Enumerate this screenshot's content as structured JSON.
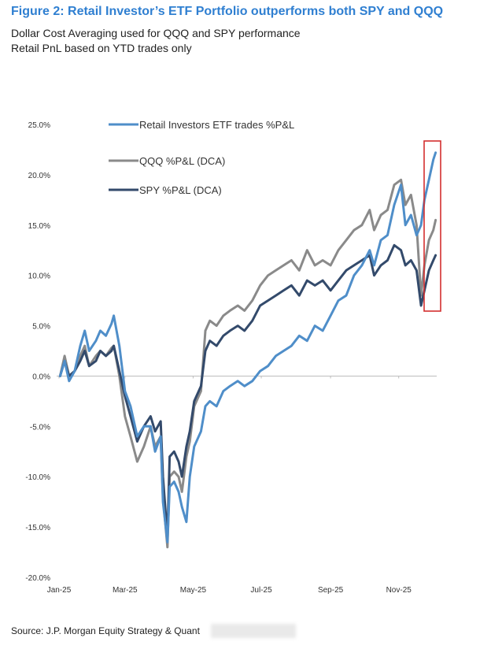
{
  "figure": {
    "title": "Figure 2: Retail Investor’s ETF Portfolio outperforms both SPY and QQQ",
    "subtitle_line1": "Dollar Cost Averaging used for QQQ and SPY performance",
    "subtitle_line2": "Retail PnL based on YTD trades only",
    "source": "Source: J.P. Morgan Equity Strategy & Quant"
  },
  "colors": {
    "retail": "#4f8ec9",
    "qqq": "#8a8a8a",
    "spy": "#334a6b",
    "highlight_box": "#d32f2f"
  },
  "chart_data": {
    "type": "line",
    "x_tick_labels": [
      "Jan-25",
      "Mar-25",
      "May-25",
      "Jul-25",
      "Sep-25",
      "Nov-25"
    ],
    "y_tick_labels": [
      "25.0%",
      "20.0%",
      "15.0%",
      "10.0%",
      "5.0%",
      "0.0%",
      "-5.0%",
      "-10.0%",
      "-15.0%",
      "-20.0%"
    ],
    "ylim": [
      -20,
      25
    ],
    "x_range": [
      "2025-01-01",
      "2025-12-05"
    ],
    "grid": false,
    "legend_position": "top-left",
    "highlight": "red box around late-November to early-December values",
    "series": [
      {
        "name": "Retail Investors ETF trades %P&L",
        "color": "#4f8ec9",
        "points": [
          [
            "2025-01-02",
            0.0
          ],
          [
            "2025-01-06",
            1.5
          ],
          [
            "2025-01-10",
            -0.5
          ],
          [
            "2025-01-15",
            0.5
          ],
          [
            "2025-01-20",
            3.0
          ],
          [
            "2025-01-24",
            4.5
          ],
          [
            "2025-01-28",
            2.5
          ],
          [
            "2025-02-03",
            3.5
          ],
          [
            "2025-02-07",
            4.5
          ],
          [
            "2025-02-12",
            4.0
          ],
          [
            "2025-02-17",
            5.2
          ],
          [
            "2025-02-19",
            6.0
          ],
          [
            "2025-02-24",
            3.0
          ],
          [
            "2025-03-01",
            -1.5
          ],
          [
            "2025-03-06",
            -3.0
          ],
          [
            "2025-03-12",
            -6.0
          ],
          [
            "2025-03-18",
            -5.0
          ],
          [
            "2025-03-24",
            -5.0
          ],
          [
            "2025-03-28",
            -7.5
          ],
          [
            "2025-04-02",
            -6.0
          ],
          [
            "2025-04-04",
            -12.5
          ],
          [
            "2025-04-08",
            -16.5
          ],
          [
            "2025-04-10",
            -11.0
          ],
          [
            "2025-04-14",
            -10.5
          ],
          [
            "2025-04-18",
            -11.5
          ],
          [
            "2025-04-21",
            -13.0
          ],
          [
            "2025-04-25",
            -14.5
          ],
          [
            "2025-04-28",
            -10.0
          ],
          [
            "2025-05-02",
            -7.0
          ],
          [
            "2025-05-08",
            -5.5
          ],
          [
            "2025-05-12",
            -3.0
          ],
          [
            "2025-05-16",
            -2.5
          ],
          [
            "2025-05-22",
            -3.0
          ],
          [
            "2025-05-28",
            -1.5
          ],
          [
            "2025-06-03",
            -1.0
          ],
          [
            "2025-06-10",
            -0.5
          ],
          [
            "2025-06-16",
            -1.0
          ],
          [
            "2025-06-23",
            -0.5
          ],
          [
            "2025-06-30",
            0.5
          ],
          [
            "2025-07-07",
            1.0
          ],
          [
            "2025-07-14",
            2.0
          ],
          [
            "2025-07-21",
            2.5
          ],
          [
            "2025-07-28",
            3.0
          ],
          [
            "2025-08-04",
            4.0
          ],
          [
            "2025-08-11",
            3.5
          ],
          [
            "2025-08-18",
            5.0
          ],
          [
            "2025-08-25",
            4.5
          ],
          [
            "2025-09-01",
            6.0
          ],
          [
            "2025-09-08",
            7.5
          ],
          [
            "2025-09-15",
            8.0
          ],
          [
            "2025-09-22",
            10.0
          ],
          [
            "2025-09-29",
            11.0
          ],
          [
            "2025-10-06",
            12.5
          ],
          [
            "2025-10-10",
            11.0
          ],
          [
            "2025-10-16",
            13.5
          ],
          [
            "2025-10-22",
            14.0
          ],
          [
            "2025-10-28",
            17.0
          ],
          [
            "2025-11-03",
            19.0
          ],
          [
            "2025-11-07",
            15.0
          ],
          [
            "2025-11-12",
            16.0
          ],
          [
            "2025-11-17",
            14.0
          ],
          [
            "2025-11-21",
            15.0
          ],
          [
            "2025-11-24",
            17.5
          ],
          [
            "2025-11-28",
            19.5
          ],
          [
            "2025-12-02",
            21.5
          ],
          [
            "2025-12-04",
            22.2
          ]
        ]
      },
      {
        "name": "QQQ %P&L (DCA)",
        "color": "#8a8a8a",
        "points": [
          [
            "2025-01-02",
            0.0
          ],
          [
            "2025-01-06",
            2.0
          ],
          [
            "2025-01-10",
            0.0
          ],
          [
            "2025-01-15",
            0.5
          ],
          [
            "2025-01-20",
            2.0
          ],
          [
            "2025-01-24",
            3.0
          ],
          [
            "2025-01-28",
            1.0
          ],
          [
            "2025-02-03",
            2.0
          ],
          [
            "2025-02-07",
            2.5
          ],
          [
            "2025-02-12",
            2.0
          ],
          [
            "2025-02-17",
            2.8
          ],
          [
            "2025-02-19",
            3.0
          ],
          [
            "2025-02-24",
            0.0
          ],
          [
            "2025-03-01",
            -4.0
          ],
          [
            "2025-03-06",
            -6.0
          ],
          [
            "2025-03-12",
            -8.5
          ],
          [
            "2025-03-18",
            -7.0
          ],
          [
            "2025-03-24",
            -5.0
          ],
          [
            "2025-03-28",
            -7.0
          ],
          [
            "2025-04-02",
            -6.0
          ],
          [
            "2025-04-04",
            -12.0
          ],
          [
            "2025-04-08",
            -17.0
          ],
          [
            "2025-04-10",
            -10.0
          ],
          [
            "2025-04-14",
            -9.5
          ],
          [
            "2025-04-18",
            -10.0
          ],
          [
            "2025-04-21",
            -11.5
          ],
          [
            "2025-04-25",
            -8.0
          ],
          [
            "2025-04-28",
            -6.5
          ],
          [
            "2025-05-02",
            -3.0
          ],
          [
            "2025-05-08",
            -1.5
          ],
          [
            "2025-05-12",
            4.5
          ],
          [
            "2025-05-16",
            5.5
          ],
          [
            "2025-05-22",
            5.0
          ],
          [
            "2025-05-28",
            6.0
          ],
          [
            "2025-06-03",
            6.5
          ],
          [
            "2025-06-10",
            7.0
          ],
          [
            "2025-06-16",
            6.5
          ],
          [
            "2025-06-23",
            7.5
          ],
          [
            "2025-06-30",
            9.0
          ],
          [
            "2025-07-07",
            10.0
          ],
          [
            "2025-07-14",
            10.5
          ],
          [
            "2025-07-21",
            11.0
          ],
          [
            "2025-07-28",
            11.5
          ],
          [
            "2025-08-04",
            10.5
          ],
          [
            "2025-08-11",
            12.5
          ],
          [
            "2025-08-18",
            11.0
          ],
          [
            "2025-08-25",
            11.5
          ],
          [
            "2025-09-01",
            11.0
          ],
          [
            "2025-09-08",
            12.5
          ],
          [
            "2025-09-15",
            13.5
          ],
          [
            "2025-09-22",
            14.5
          ],
          [
            "2025-09-29",
            15.0
          ],
          [
            "2025-10-06",
            16.5
          ],
          [
            "2025-10-10",
            14.5
          ],
          [
            "2025-10-16",
            16.0
          ],
          [
            "2025-10-22",
            16.5
          ],
          [
            "2025-10-28",
            19.0
          ],
          [
            "2025-11-03",
            19.5
          ],
          [
            "2025-11-07",
            17.0
          ],
          [
            "2025-11-12",
            18.0
          ],
          [
            "2025-11-17",
            15.0
          ],
          [
            "2025-11-21",
            8.0
          ],
          [
            "2025-11-24",
            11.0
          ],
          [
            "2025-11-28",
            13.5
          ],
          [
            "2025-12-02",
            14.5
          ],
          [
            "2025-12-04",
            15.5
          ]
        ]
      },
      {
        "name": "SPY %P&L (DCA)",
        "color": "#334a6b",
        "points": [
          [
            "2025-01-02",
            0.0
          ],
          [
            "2025-01-06",
            1.5
          ],
          [
            "2025-01-10",
            0.0
          ],
          [
            "2025-01-15",
            0.5
          ],
          [
            "2025-01-20",
            1.5
          ],
          [
            "2025-01-24",
            2.5
          ],
          [
            "2025-01-28",
            1.0
          ],
          [
            "2025-02-03",
            1.5
          ],
          [
            "2025-02-07",
            2.5
          ],
          [
            "2025-02-12",
            2.0
          ],
          [
            "2025-02-17",
            2.5
          ],
          [
            "2025-02-19",
            3.0
          ],
          [
            "2025-02-24",
            0.5
          ],
          [
            "2025-03-01",
            -2.0
          ],
          [
            "2025-03-06",
            -4.0
          ],
          [
            "2025-03-12",
            -6.5
          ],
          [
            "2025-03-18",
            -5.0
          ],
          [
            "2025-03-24",
            -4.0
          ],
          [
            "2025-03-28",
            -5.5
          ],
          [
            "2025-04-02",
            -4.5
          ],
          [
            "2025-04-04",
            -10.0
          ],
          [
            "2025-04-08",
            -16.0
          ],
          [
            "2025-04-10",
            -8.0
          ],
          [
            "2025-04-14",
            -7.5
          ],
          [
            "2025-04-18",
            -8.5
          ],
          [
            "2025-04-21",
            -10.0
          ],
          [
            "2025-04-25",
            -7.0
          ],
          [
            "2025-04-28",
            -5.5
          ],
          [
            "2025-05-02",
            -2.5
          ],
          [
            "2025-05-08",
            -1.0
          ],
          [
            "2025-05-12",
            2.5
          ],
          [
            "2025-05-16",
            3.5
          ],
          [
            "2025-05-22",
            3.0
          ],
          [
            "2025-05-28",
            4.0
          ],
          [
            "2025-06-03",
            4.5
          ],
          [
            "2025-06-10",
            5.0
          ],
          [
            "2025-06-16",
            4.5
          ],
          [
            "2025-06-23",
            5.5
          ],
          [
            "2025-06-30",
            7.0
          ],
          [
            "2025-07-07",
            7.5
          ],
          [
            "2025-07-14",
            8.0
          ],
          [
            "2025-07-21",
            8.5
          ],
          [
            "2025-07-28",
            9.0
          ],
          [
            "2025-08-04",
            8.0
          ],
          [
            "2025-08-11",
            9.5
          ],
          [
            "2025-08-18",
            9.0
          ],
          [
            "2025-08-25",
            9.5
          ],
          [
            "2025-09-01",
            8.5
          ],
          [
            "2025-09-08",
            9.5
          ],
          [
            "2025-09-15",
            10.5
          ],
          [
            "2025-09-22",
            11.0
          ],
          [
            "2025-09-29",
            11.5
          ],
          [
            "2025-10-06",
            12.0
          ],
          [
            "2025-10-10",
            10.0
          ],
          [
            "2025-10-16",
            11.0
          ],
          [
            "2025-10-22",
            11.5
          ],
          [
            "2025-10-28",
            13.0
          ],
          [
            "2025-11-03",
            12.5
          ],
          [
            "2025-11-07",
            11.0
          ],
          [
            "2025-11-12",
            11.5
          ],
          [
            "2025-11-17",
            10.5
          ],
          [
            "2025-11-21",
            7.0
          ],
          [
            "2025-11-24",
            8.5
          ],
          [
            "2025-11-28",
            10.5
          ],
          [
            "2025-12-02",
            11.5
          ],
          [
            "2025-12-04",
            12.0
          ]
        ]
      }
    ]
  }
}
